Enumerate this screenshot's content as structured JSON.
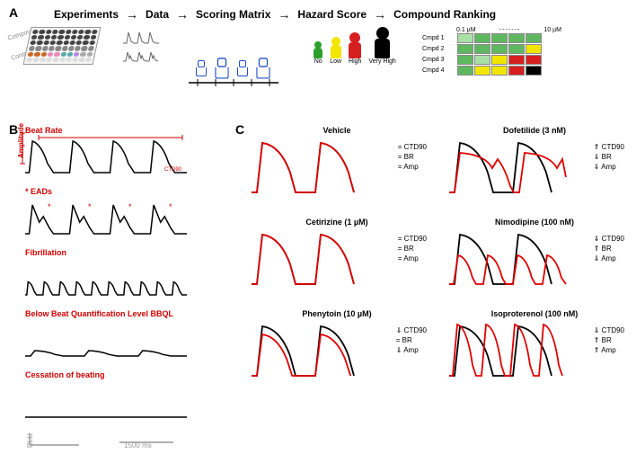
{
  "labels": {
    "A": "A",
    "B": "B",
    "C": "C"
  },
  "panelA": {
    "headers": [
      "Experiments",
      "Data",
      "Scoring Matrix",
      "Hazard Score",
      "Compound Ranking"
    ],
    "plate_side_labels": [
      "Compounds",
      "Controls"
    ],
    "plate_rows": 6,
    "plate_cols": 10,
    "plate_colors": [
      "#444",
      "#444",
      "#444",
      "#444",
      "#444",
      "#444",
      "#444",
      "#444",
      "#444",
      "#444",
      "#444",
      "#444",
      "#444",
      "#444",
      "#444",
      "#444",
      "#444",
      "#444",
      "#444",
      "#444",
      "#444",
      "#444",
      "#444",
      "#444",
      "#444",
      "#444",
      "#444",
      "#444",
      "#444",
      "#444",
      "#888",
      "#888",
      "#888",
      "#888",
      "#888",
      "#888",
      "#888",
      "#888",
      "#888",
      "#888",
      "#c62",
      "#c62",
      "#c62",
      "#e8b",
      "#e8b",
      "#5aa",
      "#5aa",
      "#b8d",
      "#aaa",
      "#aaa",
      "#ddd",
      "#ddd",
      "#ddd",
      "#ddd",
      "#ddd",
      "#ddd",
      "#ddd",
      "#ddd",
      "#ddd",
      "#ddd"
    ],
    "hazard": {
      "items": [
        {
          "label": "No",
          "color": "#2ca02c",
          "head": 8,
          "body_w": 10,
          "body_h": 12
        },
        {
          "label": "Low",
          "color": "#f2e600",
          "head": 10,
          "body_w": 12,
          "body_h": 15
        },
        {
          "label": "High",
          "color": "#d62020",
          "head": 12,
          "body_w": 14,
          "body_h": 18
        },
        {
          "label": "Very High",
          "color": "#000000",
          "head": 14,
          "body_w": 17,
          "body_h": 22
        }
      ]
    },
    "ranking": {
      "conc_left": "0.1 µM",
      "conc_right": "10 µM",
      "rows": [
        "Cmpd 1",
        "Cmpd 2",
        "Cmpd 3",
        "Cmpd 4"
      ],
      "colors": {
        "green": "#5fb85f",
        "yellow": "#f2e600",
        "red": "#d62020",
        "black": "#000000",
        "lgreen": "#a8e0a8"
      },
      "grid": [
        [
          "lgreen",
          "green",
          "green",
          "green",
          "green"
        ],
        [
          "green",
          "green",
          "green",
          "green",
          "yellow"
        ],
        [
          "green",
          "lgreen",
          "yellow",
          "red",
          "red"
        ],
        [
          "green",
          "yellow",
          "yellow",
          "red",
          "black"
        ]
      ]
    }
  },
  "panelB": {
    "traces": [
      {
        "title": "Beat Rate",
        "side": "Amplitude",
        "sub": "CTD90",
        "type": "normal"
      },
      {
        "title": "* EADs",
        "type": "ead"
      },
      {
        "title": "Fibrillation",
        "type": "fib"
      },
      {
        "title": "Below Beat Quantification Level BBQL",
        "type": "low"
      },
      {
        "title": "Cessation of beating",
        "type": "flat"
      }
    ],
    "scale_y": "RLU",
    "scale_x": "1500 ms"
  },
  "panelC": {
    "compounds": [
      {
        "name": "Vehicle",
        "params": [
          [
            "=",
            "CTD90"
          ],
          [
            "=",
            "BR"
          ],
          [
            "=",
            "Amp"
          ]
        ],
        "shift": "none"
      },
      {
        "name": "Dofetilide (3 nM)",
        "params": [
          [
            "⇑",
            "CTD90"
          ],
          [
            "⇓",
            "BR"
          ],
          [
            "⇓",
            "Amp"
          ]
        ],
        "shift": "prolonged_ead"
      },
      {
        "name": "Cetirizine (1 µM)",
        "params": [
          [
            "=",
            "CTD90"
          ],
          [
            "=",
            "BR"
          ],
          [
            "=",
            "Amp"
          ]
        ],
        "shift": "none"
      },
      {
        "name": "Nimodipine (100 nM)",
        "params": [
          [
            "⇓",
            "CTD90"
          ],
          [
            "⇑",
            "BR"
          ],
          [
            "⇓",
            "Amp"
          ]
        ],
        "shift": "fast_short"
      },
      {
        "name": "Phenytoin (10 µM)",
        "params": [
          [
            "⇓",
            "CTD90"
          ],
          [
            "=",
            "BR"
          ],
          [
            "⇓",
            "Amp"
          ]
        ],
        "shift": "slight_short"
      },
      {
        "name": "Isoproterenol (100 nM)",
        "params": [
          [
            "⇓",
            "CTD90"
          ],
          [
            "⇑",
            "BR"
          ],
          [
            "⇑",
            "Amp"
          ]
        ],
        "shift": "fast_tall"
      }
    ],
    "colors": {
      "baseline": "#000000",
      "treated": "#e00000"
    }
  },
  "style": {
    "label_color": "#d00000",
    "trace_stroke": "#000000",
    "treated_stroke": "#e00000",
    "grid_line": "#888888"
  }
}
